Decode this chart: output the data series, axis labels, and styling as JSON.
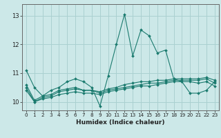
{
  "xlabel": "Humidex (Indice chaleur)",
  "ylabel": "",
  "background_color": "#cce8e8",
  "grid_color": "#aad0d0",
  "line_color": "#1a7a6e",
  "xlim": [
    -0.5,
    23.5
  ],
  "ylim": [
    9.7,
    13.4
  ],
  "yticks": [
    10,
    11,
    12,
    13
  ],
  "xticks": [
    0,
    1,
    2,
    3,
    4,
    5,
    6,
    7,
    8,
    9,
    10,
    11,
    12,
    13,
    14,
    15,
    16,
    17,
    18,
    19,
    20,
    21,
    22,
    23
  ],
  "series": [
    {
      "x": [
        0,
        1,
        2,
        3,
        4,
        5,
        6,
        7,
        8,
        9,
        10,
        11,
        12,
        13,
        14,
        15,
        16,
        17,
        18,
        19,
        20,
        21,
        22,
        23
      ],
      "y": [
        11.1,
        10.5,
        10.2,
        10.4,
        10.5,
        10.7,
        10.8,
        10.7,
        10.5,
        9.85,
        10.9,
        12.0,
        13.05,
        11.6,
        12.5,
        12.3,
        11.7,
        11.8,
        10.8,
        10.7,
        10.3,
        10.3,
        10.4,
        10.7
      ]
    },
    {
      "x": [
        0,
        1,
        2,
        3,
        4,
        5,
        6,
        7,
        8,
        9,
        10,
        11,
        12,
        13,
        14,
        15,
        16,
        17,
        18,
        19,
        20,
        21,
        22,
        23
      ],
      "y": [
        10.6,
        10.05,
        10.2,
        10.25,
        10.4,
        10.45,
        10.5,
        10.4,
        10.4,
        10.35,
        10.45,
        10.5,
        10.6,
        10.65,
        10.7,
        10.7,
        10.75,
        10.75,
        10.8,
        10.8,
        10.8,
        10.8,
        10.85,
        10.75
      ]
    },
    {
      "x": [
        0,
        1,
        2,
        3,
        4,
        5,
        6,
        7,
        8,
        9,
        10,
        11,
        12,
        13,
        14,
        15,
        16,
        17,
        18,
        19,
        20,
        21,
        22,
        23
      ],
      "y": [
        10.5,
        10.0,
        10.15,
        10.2,
        10.35,
        10.4,
        10.45,
        10.4,
        10.4,
        10.3,
        10.4,
        10.45,
        10.5,
        10.55,
        10.6,
        10.65,
        10.65,
        10.7,
        10.75,
        10.75,
        10.75,
        10.75,
        10.8,
        10.65
      ]
    },
    {
      "x": [
        0,
        1,
        2,
        3,
        4,
        5,
        6,
        7,
        8,
        9,
        10,
        11,
        12,
        13,
        14,
        15,
        16,
        17,
        18,
        19,
        20,
        21,
        22,
        23
      ],
      "y": [
        10.4,
        10.0,
        10.1,
        10.15,
        10.25,
        10.3,
        10.35,
        10.3,
        10.3,
        10.25,
        10.35,
        10.4,
        10.45,
        10.5,
        10.55,
        10.55,
        10.6,
        10.65,
        10.7,
        10.7,
        10.7,
        10.65,
        10.7,
        10.55
      ]
    }
  ]
}
